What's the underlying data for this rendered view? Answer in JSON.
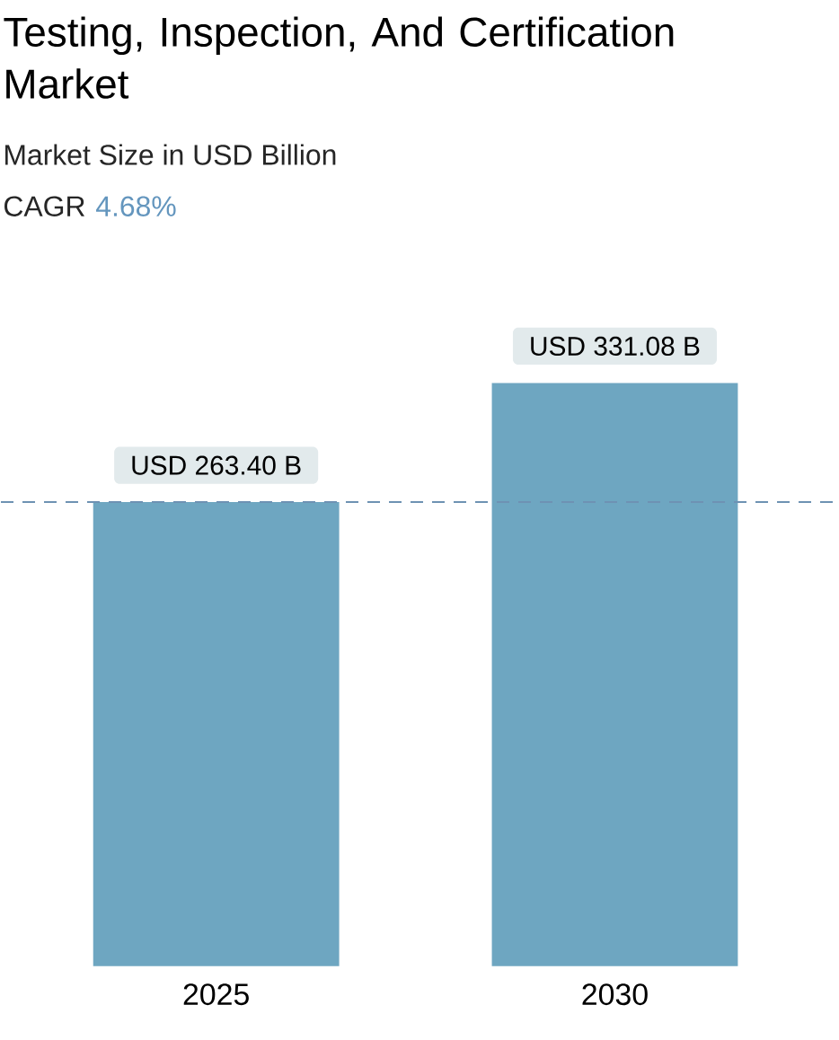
{
  "chart_data": {
    "type": "bar",
    "title": "Testing, Inspection, And Certification Market",
    "subtitle": "Market Size in USD Billion",
    "annotations": [
      "CAGR",
      "4.68%"
    ],
    "categories": [
      "2025",
      "2030"
    ],
    "values": [
      263.4,
      331.08
    ],
    "value_labels": [
      "USD 263.40 B",
      "USD 331.08 B"
    ],
    "color": "#6ea6c1",
    "ref_lines": [
      {
        "axis": "y",
        "value": 263.4,
        "color": "#6e92b3",
        "line_style": "dashed"
      }
    ],
    "stacked": false
  }
}
